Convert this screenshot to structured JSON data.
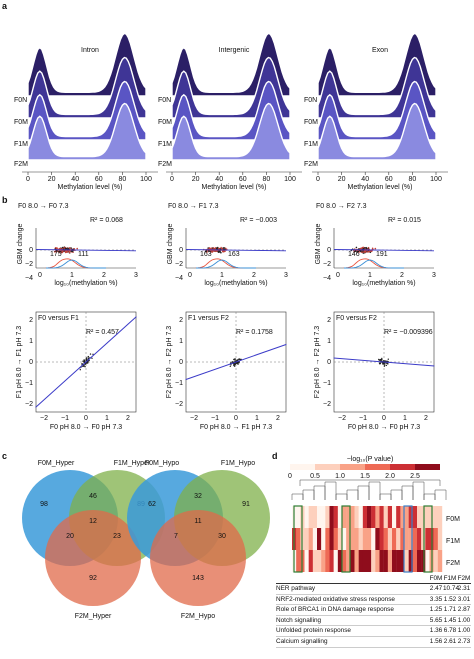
{
  "panel_labels": {
    "a": "a",
    "b": "b",
    "c": "c",
    "d": "d"
  },
  "panel_a": {
    "titles": [
      "Intron",
      "Intergenic",
      "Exon"
    ],
    "xlabel": "Methylation level (%)",
    "xticks": [
      "0",
      "20",
      "40",
      "60",
      "80",
      "100"
    ],
    "rows": [
      "F0N",
      "F0M",
      "F1M",
      "F2M"
    ],
    "colors": [
      "#2b1f66",
      "#3f3596",
      "#5a55c4",
      "#8a8ae0"
    ]
  },
  "panel_b_top": {
    "titles": [
      "F0 8.0 → F0 7.3",
      "F0 8.0 → F1 7.3",
      "F0 8.0 → F2 7.3"
    ],
    "r2": [
      "R² = 0.068",
      "R² = −0.003",
      "R² = 0.015"
    ],
    "ylabel": "GBM change",
    "yticks": [
      "0",
      "−2",
      "−4"
    ],
    "xticks": [
      "0",
      "1",
      "2",
      "3"
    ],
    "xlabel": "log₁₀(methylation %)",
    "counts_red": [
      "175",
      "163",
      "146"
    ],
    "counts_blue": [
      "111",
      "163",
      "191"
    ],
    "red_color": "#e8553f",
    "blue_color": "#3a8fd6"
  },
  "panel_b_bottom": {
    "titles": [
      "F0 versus F1",
      "F1 versus F2",
      "F0 versus F2"
    ],
    "r2": [
      "R² = 0.457",
      "R² = 0.1758",
      "R² = −0.009396"
    ],
    "ylabels": [
      "F1 pH 8.0 → F1 pH 7.3",
      "F2 pH 8.0 → F2 pH 7.3",
      "F2 pH 8.0 → F2 pH 7.3"
    ],
    "xlabels": [
      "F0 pH 8.0 → F0 pH 7.3",
      "F0 pH 8.0 → F1 pH 7.3",
      "F0 pH 8.0 → F0 pH 7.3"
    ],
    "yticks": [
      "2",
      "1",
      "0",
      "−1",
      "−2"
    ],
    "xticks": [
      "−2",
      "−1",
      "0",
      "1",
      "2"
    ],
    "line_color": "#3b3bc8"
  },
  "panel_c": {
    "hyper": {
      "a": "F0M_Hyper",
      "b": "F1M_Hyper",
      "c": "F2M_Hyper",
      "n": [
        "98",
        "46",
        "89",
        "12",
        "20",
        "23",
        "92"
      ]
    },
    "hypo": {
      "a": "F0M_Hypo",
      "b": "F1M_Hypo",
      "c": "F2M_Hypo",
      "n": [
        "62",
        "32",
        "91",
        "11",
        "7",
        "30",
        "143"
      ]
    },
    "colors": [
      "#3a9ad9",
      "#7fb04a",
      "#e06a4a"
    ]
  },
  "panel_d": {
    "legend_title": "−log₁₀(P value)",
    "legend_ticks": [
      "0",
      "0.5",
      "1.0",
      "1.5",
      "2.0",
      "2.5"
    ],
    "rows": [
      "F0M",
      "F1M",
      "F2M"
    ],
    "columns": [
      "F0M",
      "F1M",
      "F2M"
    ],
    "table": [
      {
        "name": "NER pathway",
        "v": [
          "2.47",
          "10.74",
          "2.31"
        ]
      },
      {
        "name": "NRF2-mediated oxidative stress response",
        "v": [
          "3.35",
          "1.52",
          "3.01"
        ]
      },
      {
        "name": "Role of BRCA1 in DNA damage response",
        "v": [
          "1.25",
          "1.71",
          "2.87"
        ]
      },
      {
        "name": "Notch signalling",
        "v": [
          "5.65",
          "1.45",
          "1.00"
        ]
      },
      {
        "name": "Unfolded protein response",
        "v": [
          "1.36",
          "6.78",
          "1.00"
        ]
      },
      {
        "name": "Calcium signalling",
        "v": [
          "1.56",
          "2.61",
          "2.73"
        ]
      }
    ]
  }
}
